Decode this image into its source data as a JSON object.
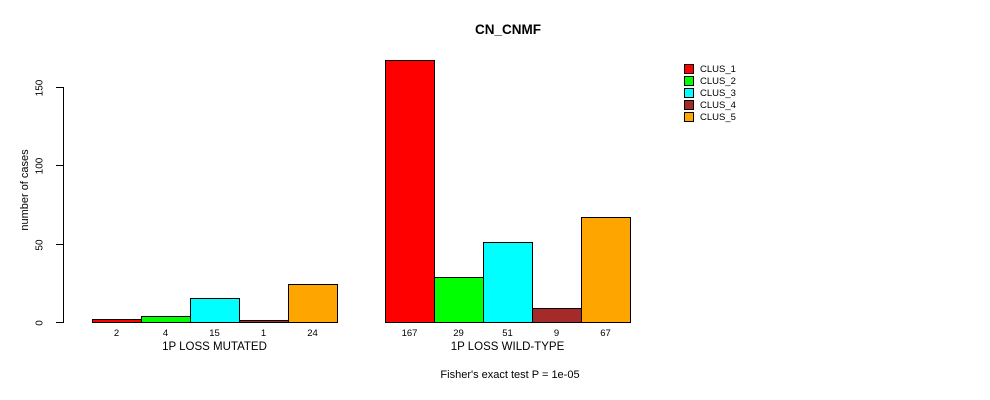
{
  "chart_data": {
    "type": "bar",
    "title": "CN_CNMF",
    "ylabel": "number of cases",
    "ylim": [
      0,
      167
    ],
    "yticks": [
      0,
      50,
      100,
      150
    ],
    "grid": false,
    "legend_position": "right",
    "categories": [
      "1P LOSS MUTATED",
      "1P LOSS WILD-TYPE"
    ],
    "series": [
      {
        "name": "CLUS_1",
        "color": "#FF0000",
        "values": [
          2,
          167
        ]
      },
      {
        "name": "CLUS_2",
        "color": "#00FF00",
        "values": [
          4,
          29
        ]
      },
      {
        "name": "CLUS_3",
        "color": "#00FFFF",
        "values": [
          15,
          51
        ]
      },
      {
        "name": "CLUS_4",
        "color": "#A52A2A",
        "values": [
          1,
          9
        ]
      },
      {
        "name": "CLUS_5",
        "color": "#FFA500",
        "values": [
          24,
          67
        ]
      }
    ],
    "bar_value_labels": [
      [
        "2",
        "4",
        "15",
        "1",
        "24"
      ],
      [
        "167",
        "29",
        "51",
        "9",
        "67"
      ]
    ],
    "annotation": "Fisher's exact test P = 1e-05"
  }
}
